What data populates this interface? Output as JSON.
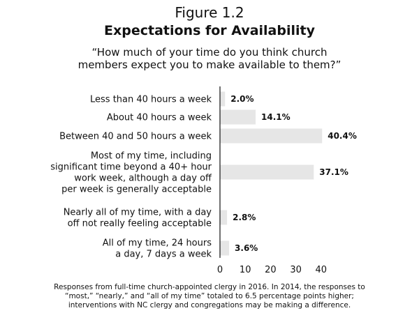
{
  "figure_label": "Figure 1.2",
  "chart_data": {
    "type": "bar",
    "orientation": "horizontal",
    "title": "Expectations for Availability",
    "subtitle": "“How much of your time do you think church members expect you to make available to them?”",
    "categories": [
      [
        "Less than 40 hours a week"
      ],
      [
        "About 40 hours a week"
      ],
      [
        "Between 40 and 50 hours a week"
      ],
      [
        "Most of my time, including",
        "significant time beyond a 40+ hour",
        "work week, although a day off",
        "per week is generally acceptable"
      ],
      [
        "Nearly all of my time, with a day",
        "off not really feeling acceptable"
      ],
      [
        "All of my time, 24 hours",
        "a day, 7 days a week"
      ]
    ],
    "values": [
      2.0,
      14.1,
      40.4,
      37.1,
      2.8,
      3.6
    ],
    "value_labels": [
      "2.0%",
      "14.1%",
      "40.4%",
      "37.1%",
      "2.8%",
      "3.6%"
    ],
    "xlim": [
      0,
      40
    ],
    "xticks": [
      "0",
      "10",
      "20",
      "30",
      "40"
    ],
    "grid": false,
    "bar_color": "#e6e6e6"
  },
  "note": "Responses from full-time church-appointed clergy in 2016. In 2014, the responses to “most,” “nearly,” and “all of my time” totaled to 6.5 percentage points higher; interventions with NC clergy and congregations may be making a difference."
}
